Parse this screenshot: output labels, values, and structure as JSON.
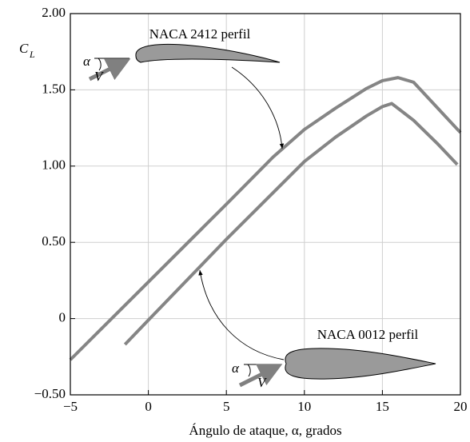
{
  "chart_data": {
    "type": "line",
    "xlabel": "Ángulo de ataque, α, grados",
    "ylabel": "C",
    "ylabel_sub": "L",
    "xlim": [
      -5,
      20
    ],
    "xticks": [
      {
        "value": -5,
        "label": "−5"
      },
      0,
      5,
      10,
      15,
      20
    ],
    "ylim": [
      -0.5,
      2.0
    ],
    "yticks": [
      {
        "value": -0.5,
        "label": "−0.50"
      },
      0,
      {
        "value": 0.5,
        "label": "0.50"
      },
      {
        "value": 1.0,
        "label": "1.00"
      },
      {
        "value": 1.5,
        "label": "1.50"
      },
      {
        "value": 2.0,
        "label": "2.00"
      }
    ],
    "grid": true,
    "series": [
      {
        "color": "#858585",
        "x": [
          -5,
          0,
          5,
          8,
          10,
          12,
          14,
          15,
          16,
          17,
          18,
          19,
          20
        ],
        "values": [
          -0.27,
          0.24,
          0.75,
          1.06,
          1.24,
          1.38,
          1.51,
          1.56,
          1.58,
          1.55,
          1.44,
          1.33,
          1.22
        ]
      },
      {
        "color": "#858585",
        "x": [
          -1.5,
          0,
          5,
          10,
          12,
          14,
          15,
          15.6,
          17,
          18.5,
          19.8
        ],
        "values": [
          -0.17,
          -0.01,
          0.52,
          1.03,
          1.19,
          1.33,
          1.39,
          1.41,
          1.3,
          1.15,
          1.01
        ]
      }
    ],
    "annotations": [
      "NACA 2412 perfil",
      "α",
      "V",
      "NACA 0012 perfil",
      "α",
      "V"
    ]
  }
}
